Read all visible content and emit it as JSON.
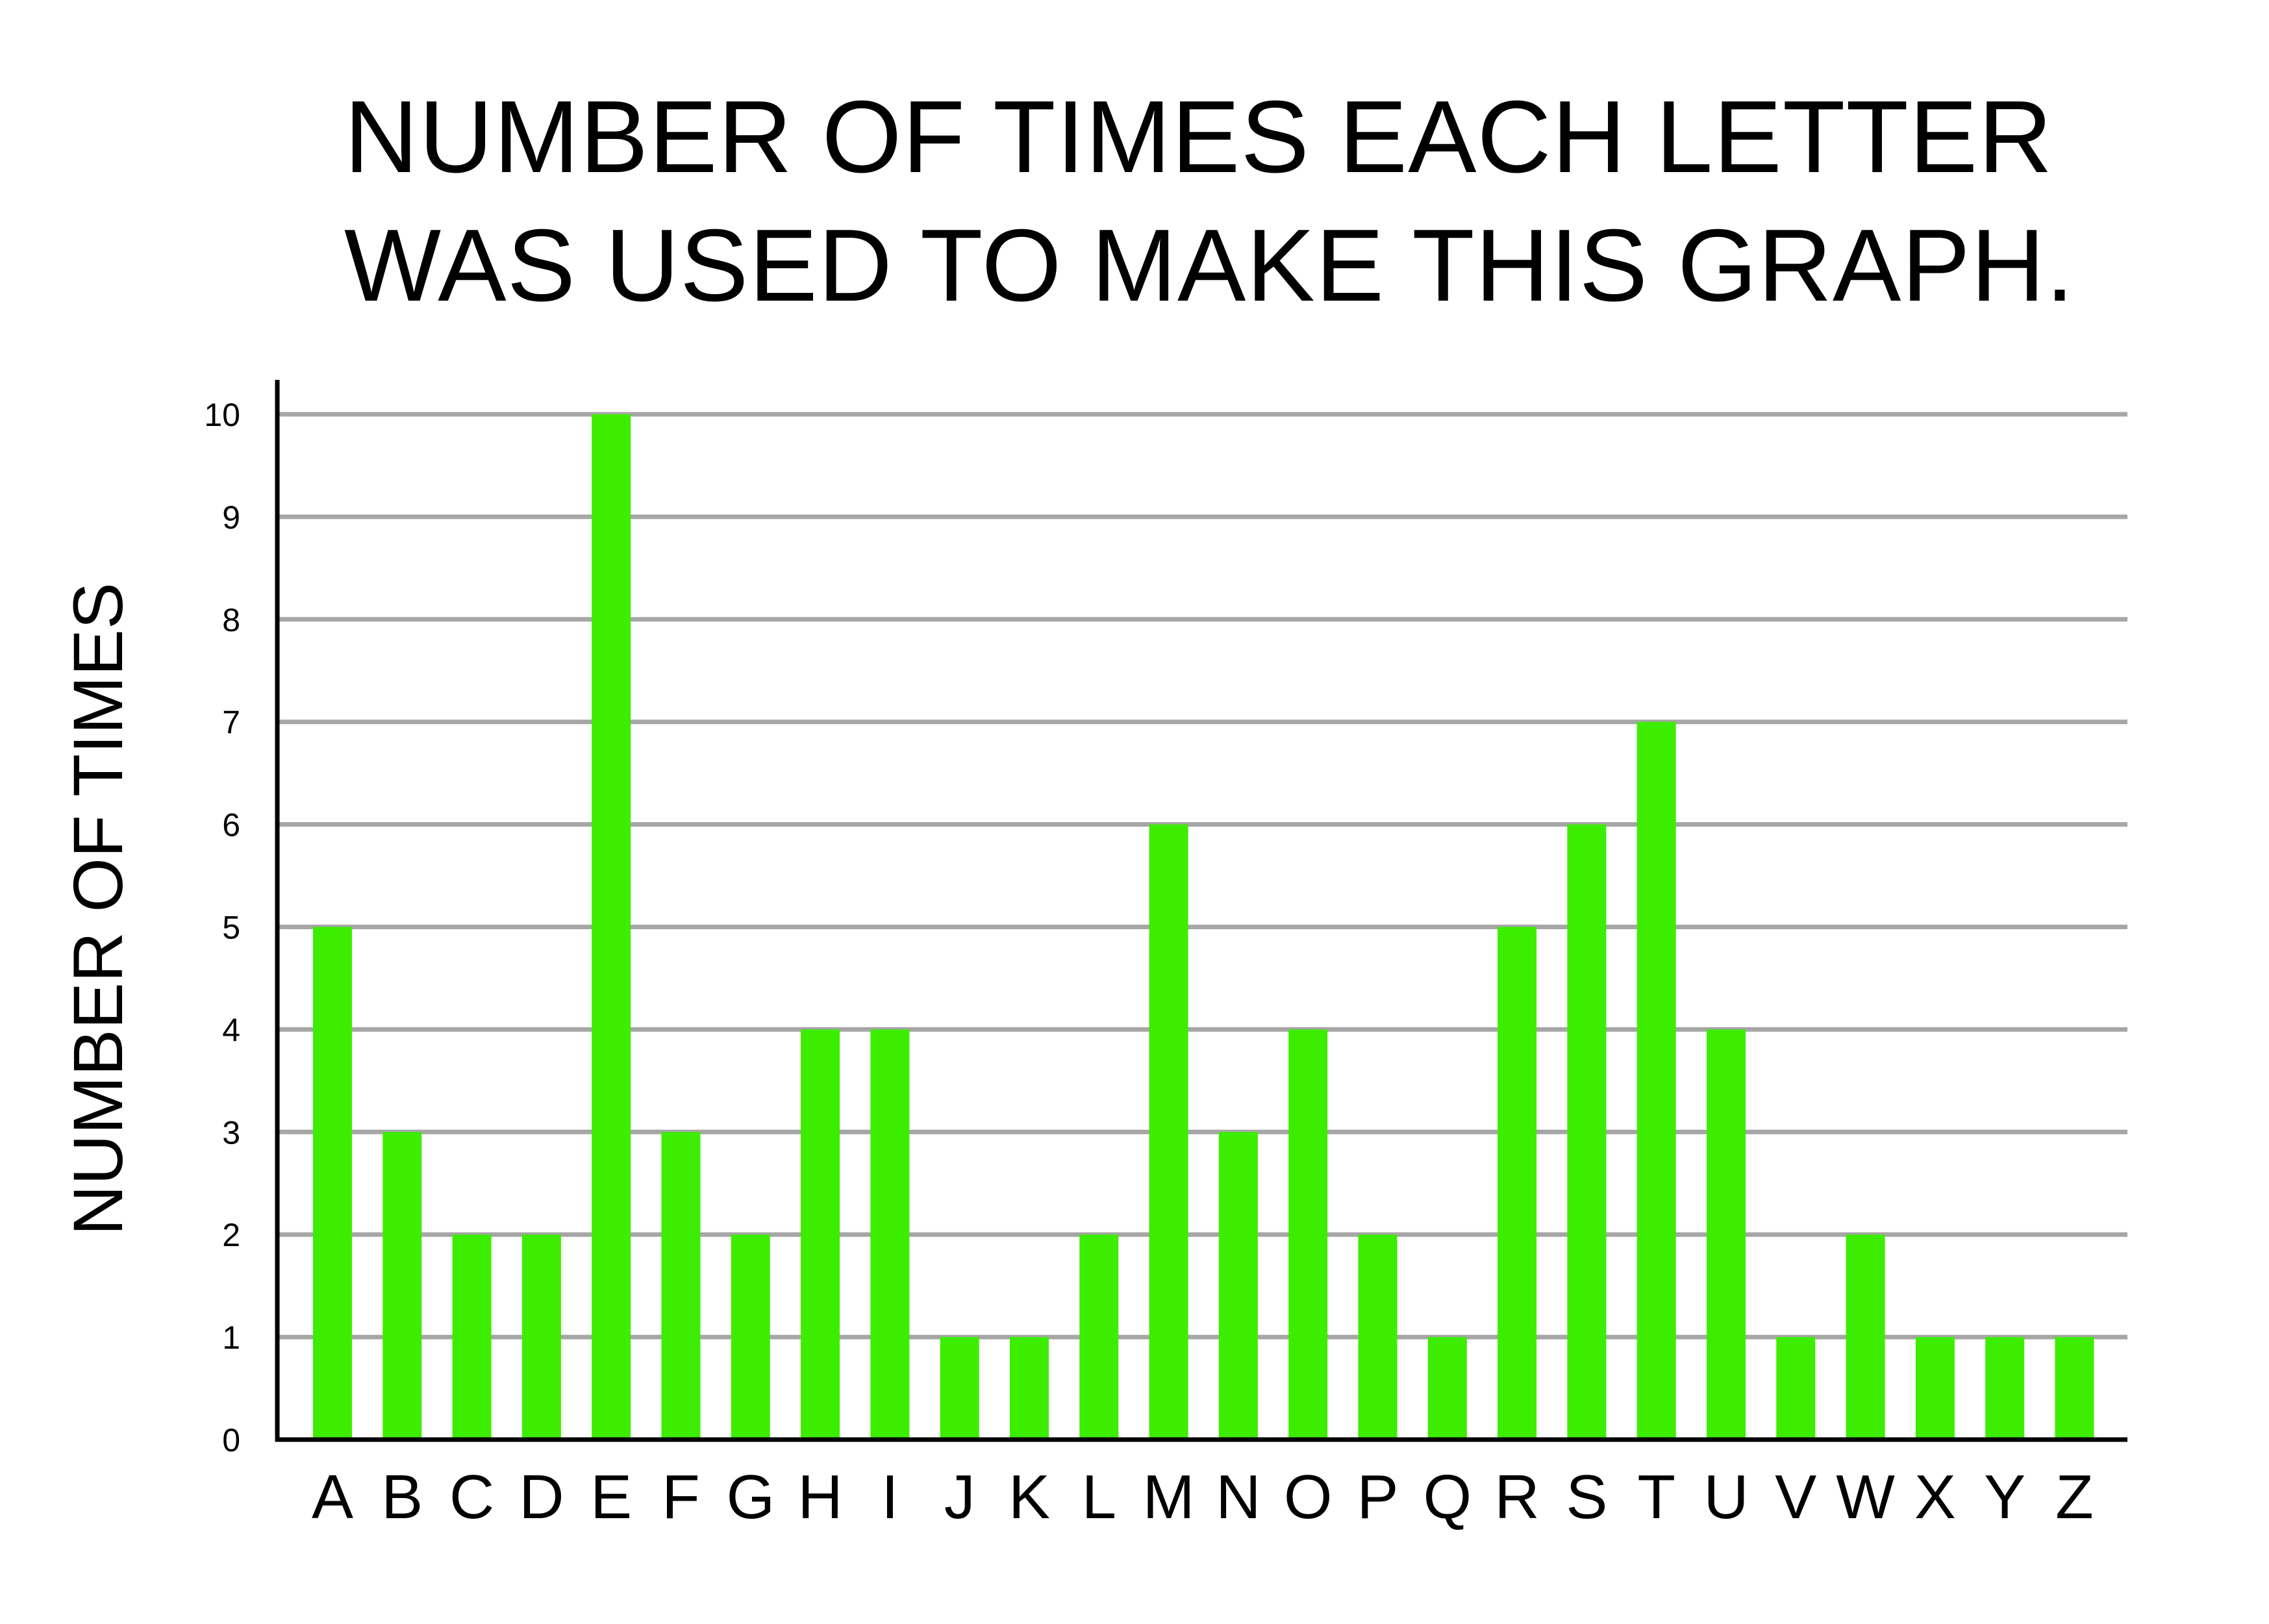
{
  "chart_data": {
    "type": "bar",
    "title": [
      "NUMBER OF TIMES EACH LETTER",
      "WAS USED TO MAKE THIS GRAPH."
    ],
    "xlabel": "",
    "ylabel": "NUMBER OF TIMES",
    "categories": [
      "A",
      "B",
      "C",
      "D",
      "E",
      "F",
      "G",
      "H",
      "I",
      "J",
      "K",
      "L",
      "M",
      "N",
      "O",
      "P",
      "Q",
      "R",
      "S",
      "T",
      "U",
      "V",
      "W",
      "X",
      "Y",
      "Z"
    ],
    "values": [
      5,
      3,
      2,
      2,
      10,
      3,
      2,
      4,
      4,
      1,
      1,
      2,
      6,
      3,
      4,
      2,
      1,
      5,
      6,
      7,
      4,
      1,
      2,
      1,
      1,
      1
    ],
    "ylim": [
      0,
      10
    ],
    "yticks": [
      0,
      1,
      2,
      3,
      4,
      5,
      6,
      7,
      8,
      9,
      10
    ],
    "grid": true,
    "legend": "none",
    "colors": {
      "bar": "#3ded00",
      "grid": "#a6a6a6",
      "axis": "#000000",
      "text": "#000000"
    }
  }
}
